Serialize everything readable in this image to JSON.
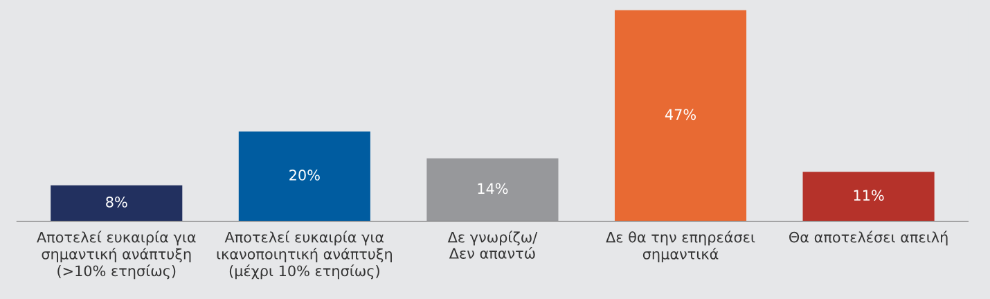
{
  "chart_data": {
    "type": "bar",
    "categories": [
      "Αποτελεί ευκαιρία για\nσημαντική ανάπτυξη\n(>10% ετησίως)",
      "Αποτελεί ευκαιρία για\nικανοποιητική ανάπτυξη\n(μέχρι 10% ετησίως)",
      "Δε γνωρίζω/\nΔεν απαντώ",
      "Δε θα την επηρεάσει\nσημαντικά",
      "Θα αποτελέσει απειλή"
    ],
    "values": [
      8,
      20,
      14,
      47,
      11
    ],
    "colors": [
      "#22305f",
      "#005ca0",
      "#97989b",
      "#e86a33",
      "#b5322a"
    ],
    "value_labels": [
      "8%",
      "20%",
      "14%",
      "47%",
      "11%"
    ],
    "grid": false,
    "legend": false
  }
}
